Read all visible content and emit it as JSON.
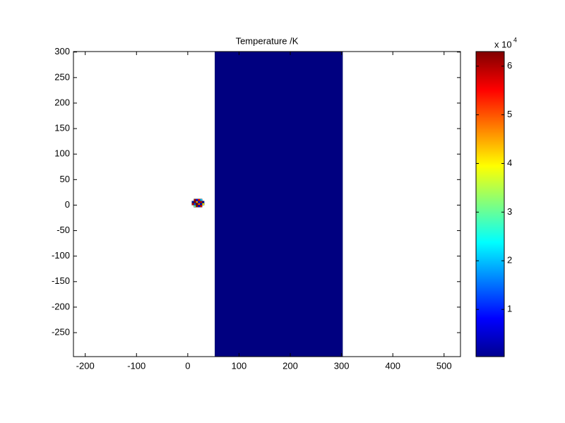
{
  "chart_data": {
    "type": "heatmap",
    "title": "Temperature /K",
    "xlim": [
      -223,
      532
    ],
    "ylim": [
      -297,
      301
    ],
    "xticks": [
      -200,
      -100,
      0,
      100,
      200,
      300,
      400,
      500
    ],
    "yticks": [
      -250,
      -200,
      -150,
      -100,
      -50,
      0,
      50,
      100,
      150,
      200,
      250,
      300
    ],
    "regions": [
      {
        "x": [
          53,
          302
        ],
        "y": [
          -297,
          301
        ],
        "value": 300
      }
    ],
    "blob": {
      "x": [
        14,
        18,
        22,
        26,
        10,
        14,
        18,
        22,
        26,
        30,
        10,
        14,
        18,
        22,
        26,
        30,
        14,
        18,
        22,
        26
      ],
      "y": [
        10,
        10,
        10,
        10,
        6,
        6,
        6,
        6,
        6,
        6,
        2,
        2,
        2,
        2,
        2,
        2,
        -2,
        -2,
        -2,
        -2
      ],
      "values": [
        60000,
        8000,
        55000,
        20000,
        3000,
        62000,
        45000,
        9000,
        58000,
        2000,
        58000,
        12000,
        63000,
        50000,
        5000,
        40000,
        30000,
        61000,
        6000,
        57000
      ]
    },
    "colormap": "jet",
    "clim": [
      300,
      63000
    ],
    "colorbar_ticks": [
      {
        "value": 10000,
        "label": "1"
      },
      {
        "value": 20000,
        "label": "2"
      },
      {
        "value": 30000,
        "label": "3"
      },
      {
        "value": 40000,
        "label": "4"
      },
      {
        "value": 50000,
        "label": "5"
      },
      {
        "value": 60000,
        "label": "6"
      }
    ],
    "colorbar_multiplier": "x 10",
    "colorbar_exponent": "4"
  }
}
